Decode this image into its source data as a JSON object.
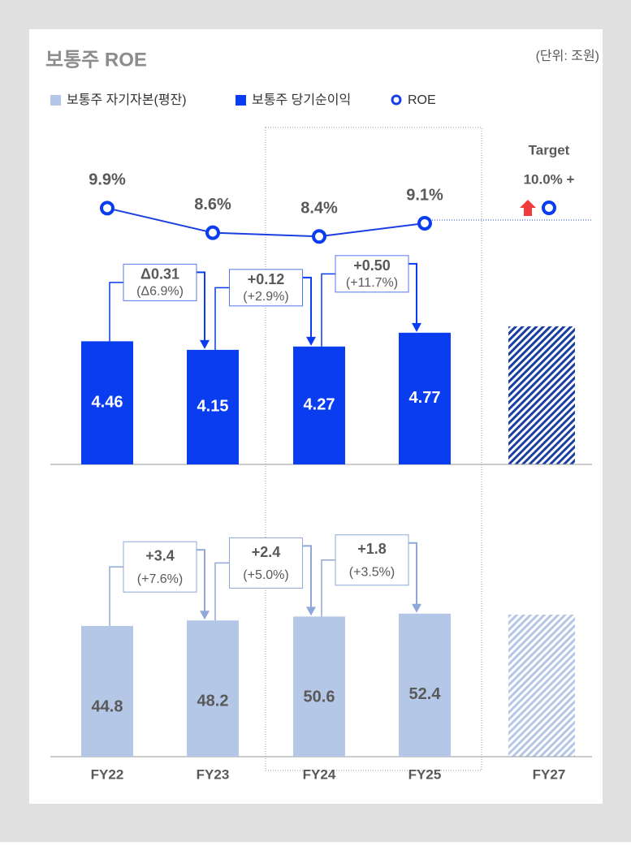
{
  "title": "보통주 ROE",
  "unit": "(단위: 조원)",
  "chart_data": [
    {
      "type": "line",
      "name": "ROE",
      "categories": [
        "FY22",
        "FY23",
        "FY24",
        "FY25"
      ],
      "values": [
        9.9,
        8.6,
        8.4,
        9.1
      ],
      "value_labels": [
        "9.9%",
        "8.6%",
        "8.4%",
        "9.1%"
      ],
      "color": "#1a3fe0"
    },
    {
      "type": "bar",
      "name": "보통주 당기순이익",
      "categories": [
        "FY22",
        "FY23",
        "FY24",
        "FY25"
      ],
      "values": [
        4.46,
        4.15,
        4.27,
        4.77
      ],
      "color": "#0a3cf0",
      "changes": [
        {
          "label": "Δ0.31",
          "pct": "(Δ6.9%)"
        },
        {
          "label": "+0.12",
          "pct": "(+2.9%)"
        },
        {
          "label": "+0.50",
          "pct": "(+11.7%)"
        }
      ]
    },
    {
      "type": "bar",
      "name": "보통주 자기자본(평잔)",
      "categories": [
        "FY22",
        "FY23",
        "FY24",
        "FY25"
      ],
      "values": [
        44.8,
        48.2,
        50.6,
        52.4
      ],
      "color": "#b4c7e7",
      "changes": [
        {
          "label": "+3.4",
          "pct": "(+7.6%)"
        },
        {
          "label": "+2.4",
          "pct": "(+5.0%)"
        },
        {
          "label": "+1.8",
          "pct": "(+3.5%)"
        }
      ]
    }
  ],
  "target": {
    "category": "FY27",
    "title": "Target",
    "label": "10.0% +"
  }
}
